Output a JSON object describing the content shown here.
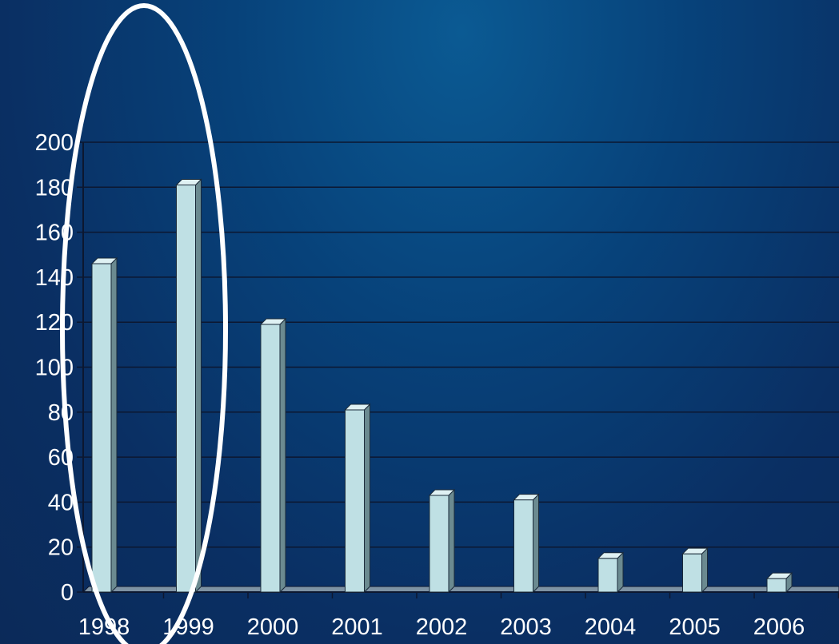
{
  "chart_data": {
    "type": "bar",
    "categories": [
      "1998",
      "1999",
      "2000",
      "2001",
      "2002",
      "2003",
      "2004",
      "2005",
      "2006"
    ],
    "values": [
      146,
      181,
      119,
      81,
      43,
      41,
      15,
      17,
      6
    ],
    "yticks": [
      "0",
      "20",
      "40",
      "60",
      "80",
      "100",
      "120",
      "140",
      "160",
      "180",
      "200"
    ],
    "ylim": [
      0,
      200
    ],
    "grid": true,
    "title": "",
    "xlabel": "",
    "ylabel": "",
    "colors": {
      "bar_front": "#bfe0e4",
      "bar_side": "#6b8a90",
      "bar_top": "#dff1f3",
      "gridline": "#0c1730",
      "highlight_ellipse": "#ffffff"
    }
  }
}
